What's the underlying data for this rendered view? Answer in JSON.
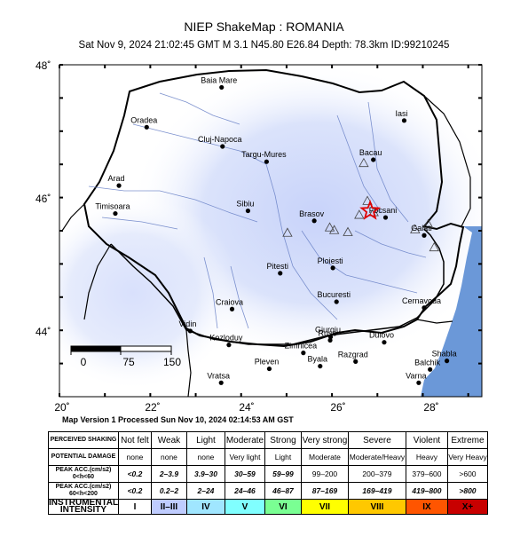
{
  "header": {
    "title": "NIEP ShakeMap : ROMANIA",
    "subtitle": "Sat Nov  9, 2024 21:02:45 GMT   M 3.1   N45.80 E26.84   Depth: 78.3km   ID:99210245"
  },
  "axes": {
    "lat_labels": [
      "48˚",
      "46˚",
      "44˚"
    ],
    "lon_labels": [
      "20˚",
      "22˚",
      "24˚",
      "26˚",
      "28˚"
    ]
  },
  "scale_bar": {
    "labels": [
      "0",
      "75",
      "150"
    ]
  },
  "cities": [
    {
      "name": "Baia Mare",
      "lon": 23.57,
      "lat": 47.66
    },
    {
      "name": "Oradea",
      "lon": 21.92,
      "lat": 47.06
    },
    {
      "name": "Iasi",
      "lon": 27.59,
      "lat": 47.16
    },
    {
      "name": "Cluj-Napoca",
      "lon": 23.59,
      "lat": 46.77
    },
    {
      "name": "Targu-Mures",
      "lon": 24.56,
      "lat": 46.54
    },
    {
      "name": "Bacau",
      "lon": 26.91,
      "lat": 46.57
    },
    {
      "name": "Arad",
      "lon": 21.31,
      "lat": 46.18
    },
    {
      "name": "Timisoara",
      "lon": 21.23,
      "lat": 45.76
    },
    {
      "name": "Sibiu",
      "lon": 24.15,
      "lat": 45.8
    },
    {
      "name": "Brasov",
      "lon": 25.61,
      "lat": 45.65
    },
    {
      "name": "Focsani",
      "lon": 27.18,
      "lat": 45.7
    },
    {
      "name": "Galati",
      "lon": 28.03,
      "lat": 45.43
    },
    {
      "name": "Ploiesti",
      "lon": 26.02,
      "lat": 44.94
    },
    {
      "name": "Pitesti",
      "lon": 24.86,
      "lat": 44.86
    },
    {
      "name": "Bucuresti",
      "lon": 26.1,
      "lat": 44.43
    },
    {
      "name": "Cernavoda",
      "lon": 28.03,
      "lat": 44.34
    },
    {
      "name": "Craiova",
      "lon": 23.8,
      "lat": 44.32
    },
    {
      "name": "Giurgiu",
      "lon": 25.97,
      "lat": 43.9
    },
    {
      "name": "Dulovo",
      "lon": 27.15,
      "lat": 43.82
    },
    {
      "name": "Zimnicea",
      "lon": 25.37,
      "lat": 43.66
    },
    {
      "name": "Ruse",
      "lon": 25.96,
      "lat": 43.85
    },
    {
      "name": "Kozloduy",
      "lon": 23.73,
      "lat": 43.78
    },
    {
      "name": "Vidin",
      "lon": 22.88,
      "lat": 43.99
    },
    {
      "name": "Pleven",
      "lon": 24.62,
      "lat": 43.42
    },
    {
      "name": "Byala",
      "lon": 25.74,
      "lat": 43.46
    },
    {
      "name": "Razgrad",
      "lon": 26.52,
      "lat": 43.53
    },
    {
      "name": "Balchik",
      "lon": 28.16,
      "lat": 43.41
    },
    {
      "name": "Shabla",
      "lon": 28.53,
      "lat": 43.54
    },
    {
      "name": "Vratsa",
      "lon": 23.56,
      "lat": 43.21
    },
    {
      "name": "Varna",
      "lon": 27.91,
      "lat": 43.21
    }
  ],
  "epicenter": {
    "lon": 26.84,
    "lat": 45.8
  },
  "stations": [
    {
      "lon": 26.7,
      "lat": 46.52
    },
    {
      "lon": 26.78,
      "lat": 45.95
    },
    {
      "lon": 26.92,
      "lat": 45.78
    },
    {
      "lon": 26.6,
      "lat": 45.74
    },
    {
      "lon": 25.95,
      "lat": 45.55
    },
    {
      "lon": 26.05,
      "lat": 45.51
    },
    {
      "lon": 26.35,
      "lat": 45.48
    },
    {
      "lon": 25.02,
      "lat": 45.47
    },
    {
      "lon": 27.83,
      "lat": 45.52
    },
    {
      "lon": 28.12,
      "lat": 45.6
    },
    {
      "lon": 28.25,
      "lat": 45.25
    }
  ],
  "map_version": "Map Version 1 Processed Sun Nov 10, 2024 02:14:53 AM GST",
  "legend": {
    "rows": [
      {
        "header": "PERCEIVED SHAKING",
        "cells": [
          "Not felt",
          "Weak",
          "Light",
          "Moderate",
          "Strong",
          "Very strong",
          "Severe",
          "Violent",
          "Extreme"
        ]
      },
      {
        "header": "POTENTIAL DAMAGE",
        "cells": [
          "none",
          "none",
          "none",
          "Very light",
          "Light",
          "Moderate",
          "Moderate/Heavy",
          "Heavy",
          "Very Heavy"
        ]
      },
      {
        "header": "PEAK ACC.(cm/s2) 0<h<60",
        "cells": [
          "<0.2",
          "2–3.9",
          "3.9–30",
          "30–59",
          "59–99",
          "99–200",
          "200–379",
          "379–600",
          ">600"
        ]
      },
      {
        "header": "PEAK ACC.(cm/s2) 60<h<200",
        "cells": [
          "<0.2",
          "0.2–2",
          "2–24",
          "24–46",
          "46–87",
          "87–169",
          "169–419",
          "419–800",
          ">800"
        ]
      },
      {
        "header": "INSTRUMENTAL INTENSITY",
        "cells": [
          "I",
          "II–III",
          "IV",
          "V",
          "VI",
          "VII",
          "VIII",
          "IX",
          "X+"
        ]
      }
    ],
    "intensity_colors": [
      "#ffffff",
      "#bfccff",
      "#a0e6ff",
      "#80ffff",
      "#7aff93",
      "#ffff00",
      "#ffc800",
      "#ff5500",
      "#c80000"
    ],
    "column_widths": [
      36,
      39,
      42,
      44,
      40,
      52,
      64,
      46,
      44
    ]
  },
  "colors": {
    "ocean": "#6b98d8",
    "intensity_tint": "#dfe6fb"
  }
}
